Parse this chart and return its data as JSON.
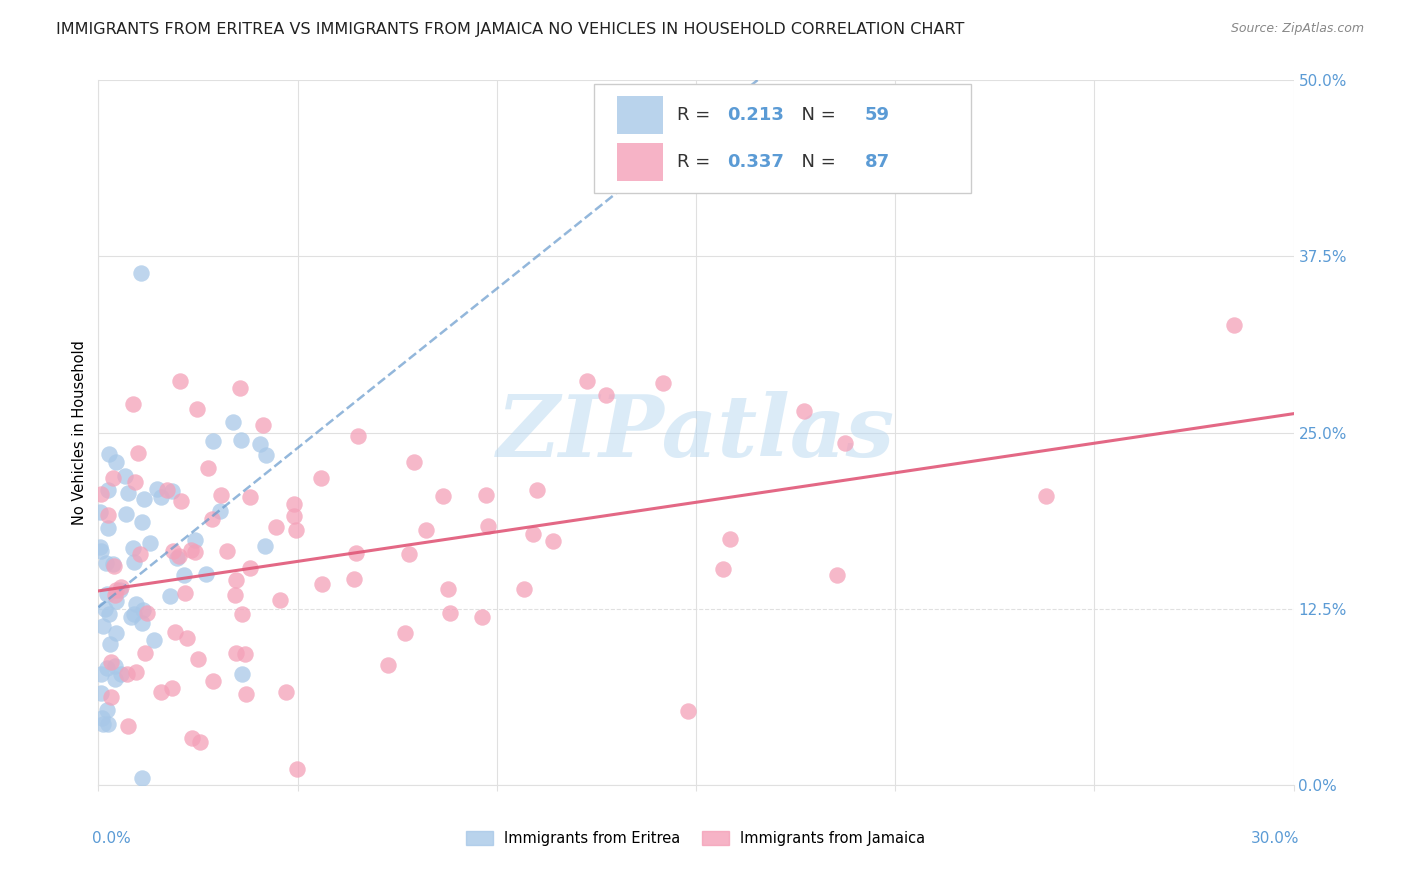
{
  "title": "IMMIGRANTS FROM ERITREA VS IMMIGRANTS FROM JAMAICA NO VEHICLES IN HOUSEHOLD CORRELATION CHART",
  "source": "Source: ZipAtlas.com",
  "ylabel": "No Vehicles in Household",
  "ytick_values": [
    0.0,
    12.5,
    25.0,
    37.5,
    50.0
  ],
  "xlim": [
    0.0,
    30.0
  ],
  "ylim": [
    0.0,
    50.0
  ],
  "R_eritrea": "0.213",
  "N_eritrea": "59",
  "R_jamaica": "0.337",
  "N_jamaica": "87",
  "label_eritrea": "Immigrants from Eritrea",
  "label_jamaica": "Immigrants from Jamaica",
  "color_eritrea": "#a8c8e8",
  "color_jamaica": "#f4a0b8",
  "color_line_eritrea": "#6699cc",
  "color_line_jamaica": "#e05878",
  "color_axis_text": "#5b9bd5",
  "color_grid": "#e0e0e0",
  "watermark": "ZIPatlas",
  "title_fontsize": 11.5,
  "source_fontsize": 9,
  "axis_fontsize": 11,
  "legend_fontsize": 13
}
